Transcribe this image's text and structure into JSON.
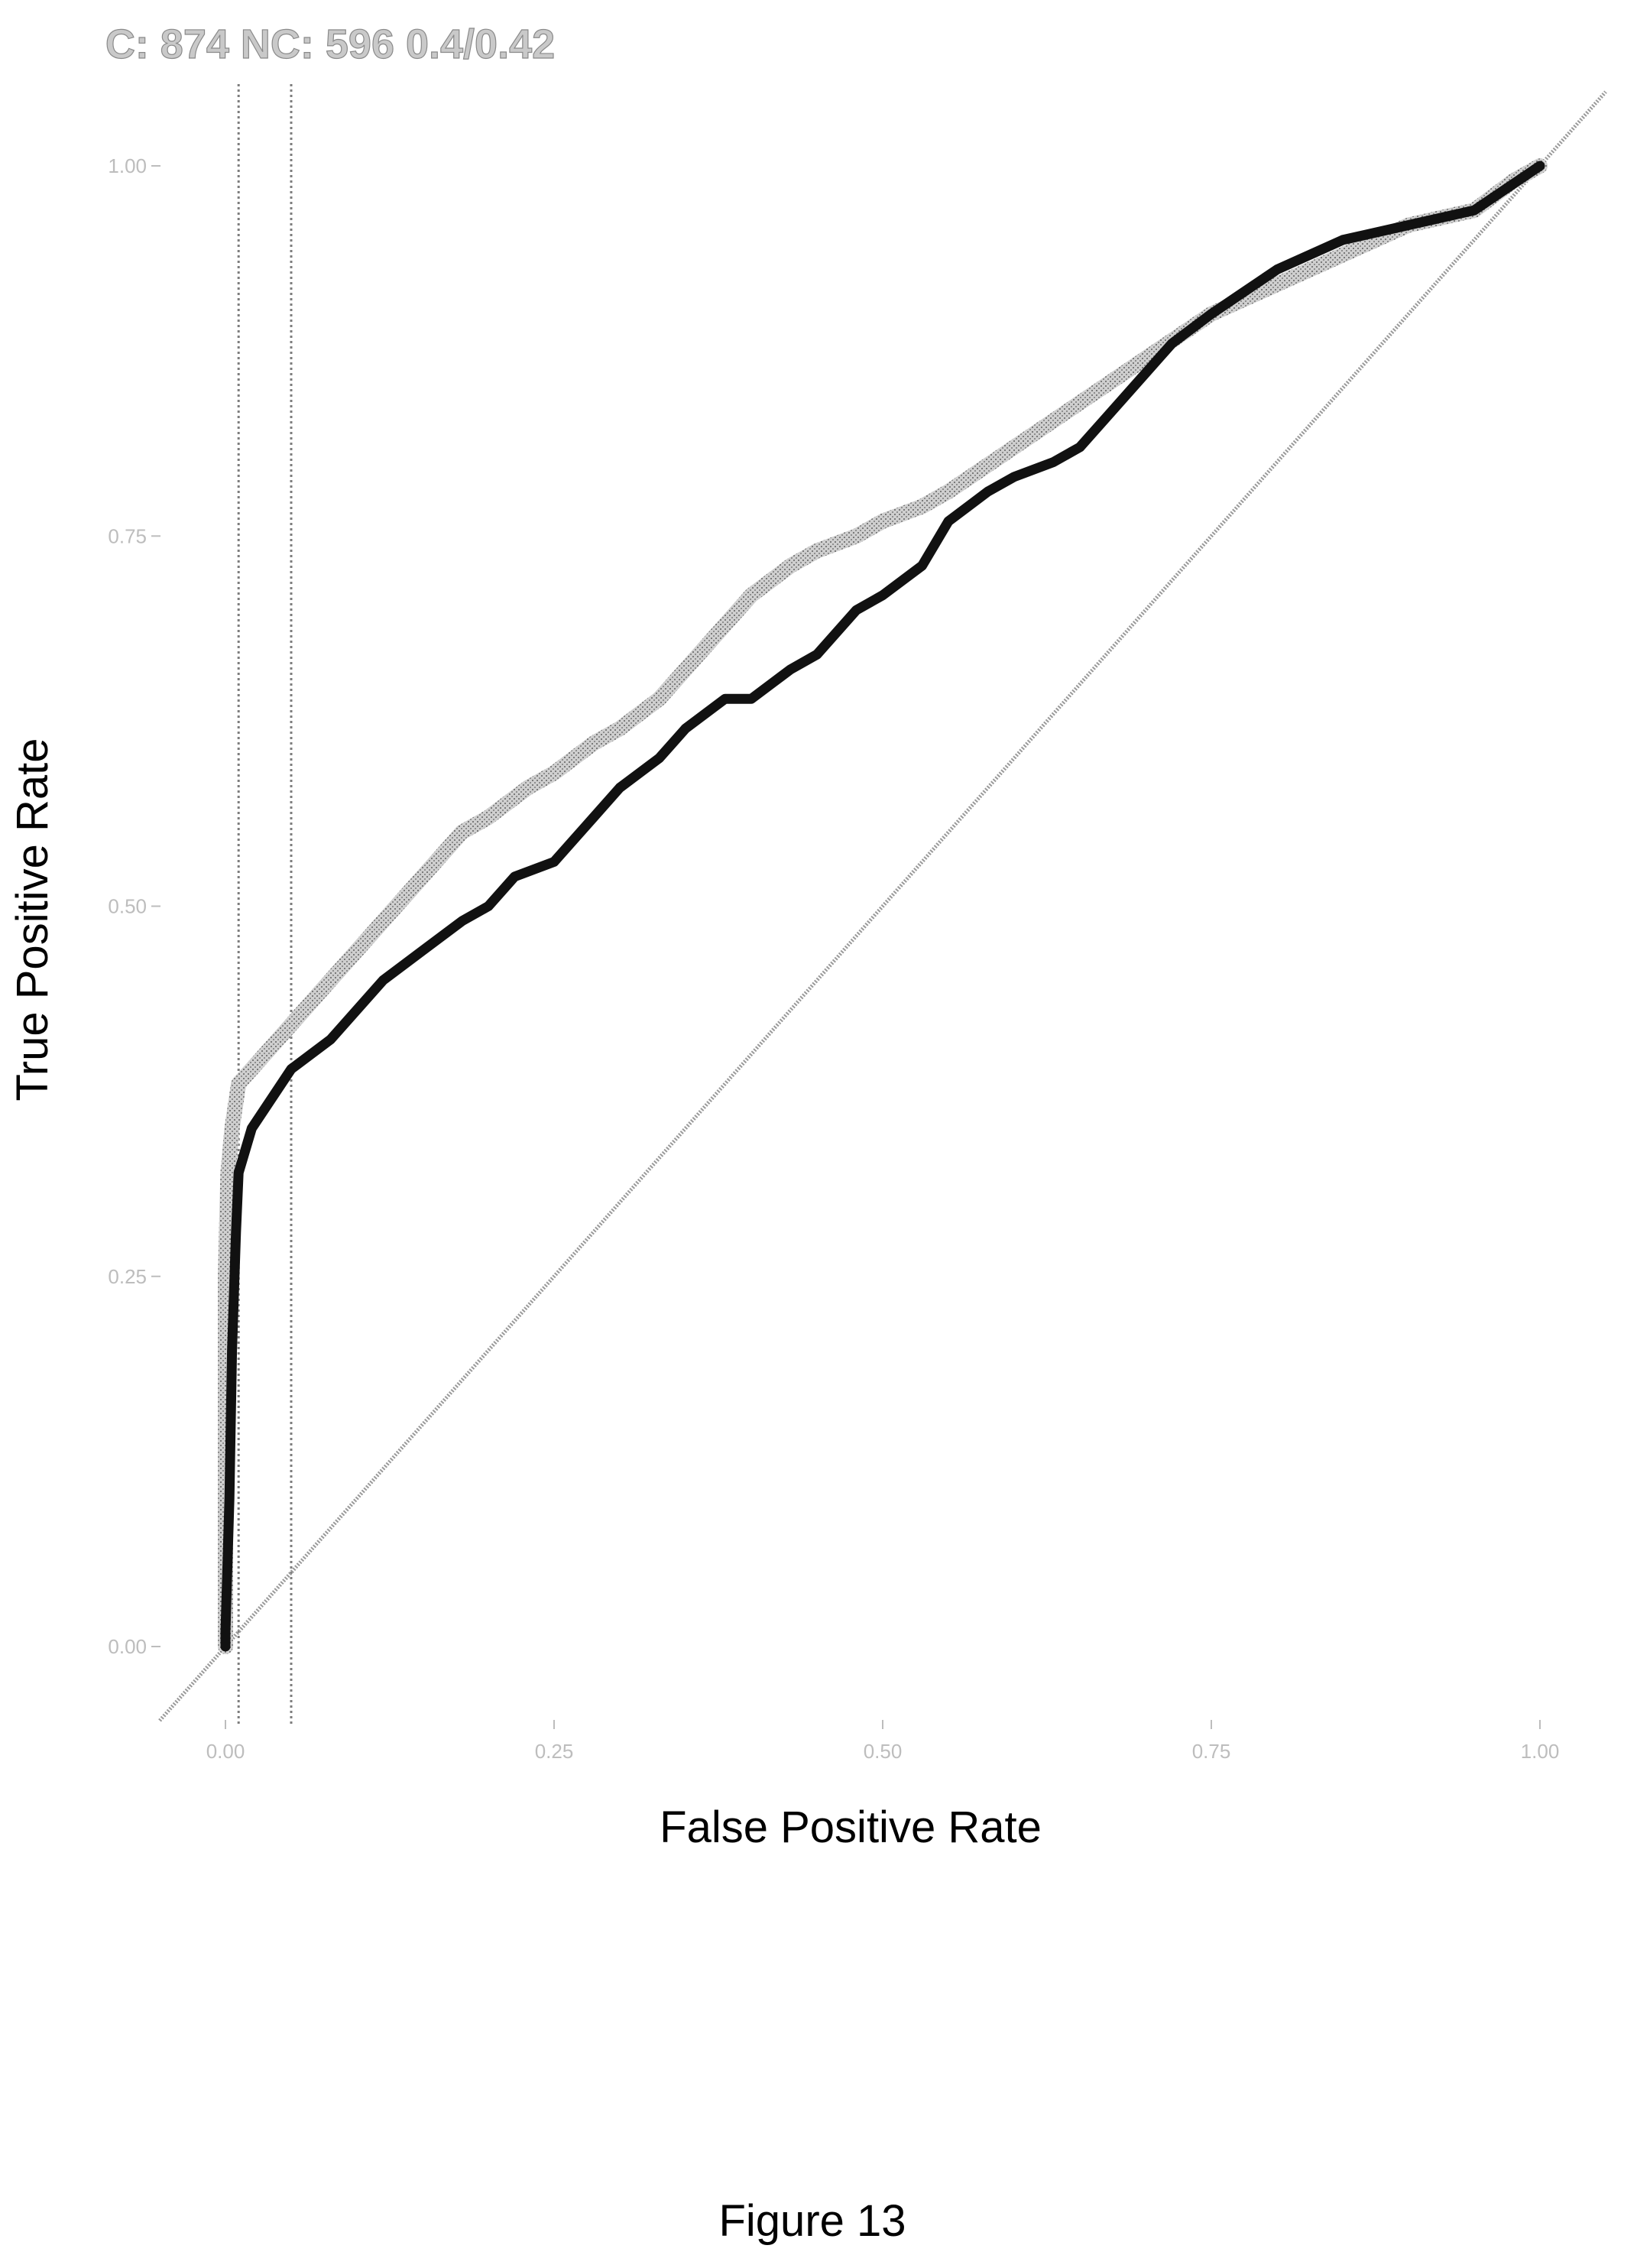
{
  "figure_caption": "Figure 13",
  "chart_data": {
    "type": "line",
    "title": "C: 874 NC: 596 0.4/0.42",
    "xlabel": "False Positive Rate",
    "ylabel": "True Positive Rate",
    "xlim": [
      -0.05,
      1.05
    ],
    "ylim": [
      -0.05,
      1.05
    ],
    "x_ticks": [
      "0.00",
      "0.25",
      "0.50",
      "0.75",
      "1.00"
    ],
    "y_ticks": [
      "0.00",
      "0.25",
      "0.50",
      "0.75",
      "1.00"
    ],
    "grid": false,
    "legend": "none",
    "reference_lines": {
      "vertical_x": [
        0.01,
        0.05
      ],
      "diagonal": true
    },
    "colors": {
      "series_light": "#b3b3b3",
      "series_dark": "#111111",
      "reference": "#9a9a9a"
    },
    "series": [
      {
        "x": [
          0.0,
          0.0,
          0.0,
          0.002,
          0.005,
          0.01,
          0.02,
          0.05,
          0.08,
          0.1,
          0.12,
          0.15,
          0.18,
          0.2,
          0.23,
          0.25,
          0.28,
          0.3,
          0.33,
          0.35,
          0.38,
          0.4,
          0.43,
          0.45,
          0.48,
          0.5,
          0.53,
          0.55,
          0.6,
          0.65,
          0.7,
          0.75,
          0.8,
          0.85,
          0.9,
          0.95,
          0.98,
          1.0
        ],
        "y": [
          0.0,
          0.15,
          0.25,
          0.32,
          0.35,
          0.38,
          0.39,
          0.42,
          0.45,
          0.47,
          0.49,
          0.52,
          0.55,
          0.56,
          0.58,
          0.59,
          0.61,
          0.62,
          0.64,
          0.66,
          0.69,
          0.71,
          0.73,
          0.74,
          0.75,
          0.76,
          0.77,
          0.78,
          0.81,
          0.84,
          0.87,
          0.9,
          0.92,
          0.94,
          0.96,
          0.97,
          0.99,
          1.0
        ]
      },
      {
        "x": [
          0.0,
          0.0,
          0.003,
          0.005,
          0.008,
          0.01,
          0.02,
          0.05,
          0.08,
          0.1,
          0.12,
          0.15,
          0.18,
          0.2,
          0.22,
          0.25,
          0.28,
          0.3,
          0.33,
          0.35,
          0.38,
          0.4,
          0.43,
          0.45,
          0.48,
          0.5,
          0.53,
          0.55,
          0.58,
          0.6,
          0.63,
          0.65,
          0.67,
          0.7,
          0.72,
          0.75,
          0.8,
          0.85,
          0.9,
          0.95,
          1.0
        ],
        "y": [
          0.0,
          0.01,
          0.1,
          0.2,
          0.28,
          0.32,
          0.35,
          0.39,
          0.41,
          0.43,
          0.45,
          0.47,
          0.49,
          0.5,
          0.52,
          0.53,
          0.56,
          0.58,
          0.6,
          0.62,
          0.64,
          0.64,
          0.66,
          0.67,
          0.7,
          0.71,
          0.73,
          0.76,
          0.78,
          0.79,
          0.8,
          0.81,
          0.83,
          0.86,
          0.88,
          0.9,
          0.93,
          0.95,
          0.96,
          0.97,
          1.0
        ]
      }
    ]
  }
}
